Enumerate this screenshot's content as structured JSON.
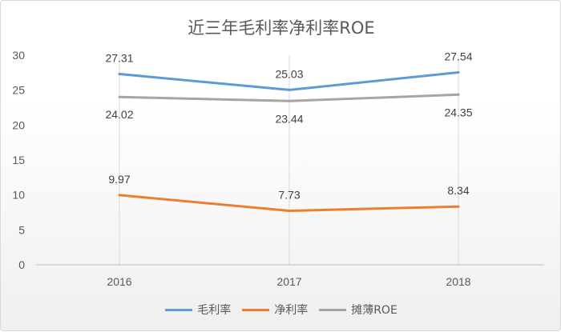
{
  "chart_data": {
    "type": "line",
    "title": "近三年毛利率净利率ROE",
    "categories": [
      "2016",
      "2017",
      "2018"
    ],
    "ylim": [
      0,
      30
    ],
    "yticks": [
      "0",
      "5",
      "10",
      "15",
      "20",
      "25",
      "30"
    ],
    "grid": "vertical",
    "legend_position": "bottom",
    "series": [
      {
        "name": "毛利率",
        "color": "#5b9bd5",
        "values": [
          27.31,
          25.03,
          27.54
        ],
        "labels": [
          "27.31",
          "25.03",
          "27.54"
        ]
      },
      {
        "name": "净利率",
        "color": "#ed7d31",
        "values": [
          9.97,
          7.73,
          8.34
        ],
        "labels": [
          "9.97",
          "7.73",
          "8.34"
        ]
      },
      {
        "name": "摊薄ROE",
        "color": "#a5a5a5",
        "values": [
          24.02,
          23.44,
          24.35
        ],
        "labels": [
          "24.02",
          "23.44",
          "24.35"
        ]
      }
    ]
  }
}
